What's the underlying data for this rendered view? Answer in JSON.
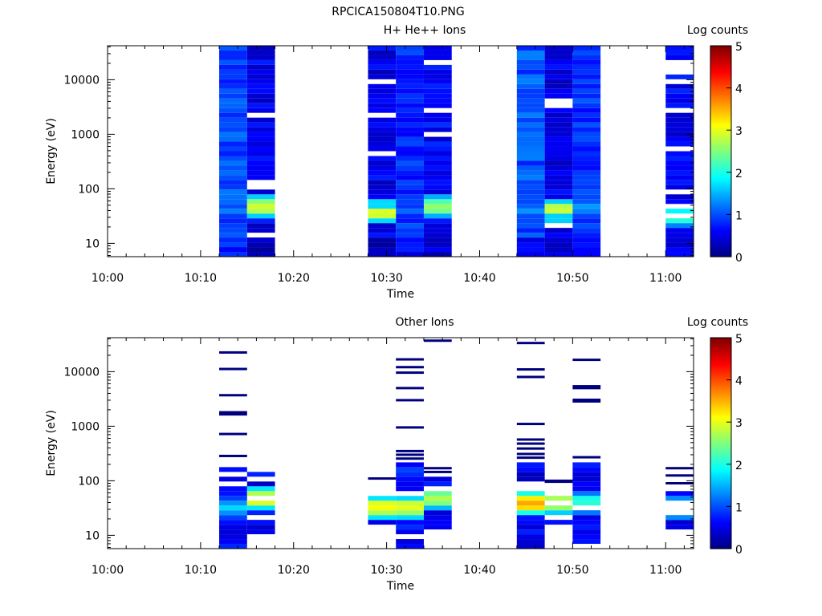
{
  "figure_title": "RPCICA150804T10.PNG",
  "colormap": [
    "#00007f",
    "#0000ff",
    "#007fff",
    "#00ffff",
    "#7fff7f",
    "#ffff00",
    "#ff7f00",
    "#ff0000",
    "#7f0000"
  ],
  "chart_data": [
    {
      "type": "heatmap",
      "title": "H+ He++ Ions",
      "xlabel": "Time",
      "ylabel": "Energy (eV)",
      "colorbar_label": "Log counts",
      "colorbar_range": [
        0,
        5
      ],
      "colorbar_ticks": [
        "0",
        "1",
        "2",
        "3",
        "4",
        "5"
      ],
      "x_range": [
        "10:00",
        "11:03"
      ],
      "x_ticks": [
        "10:00",
        "10:10",
        "10:20",
        "10:30",
        "10:40",
        "10:50",
        "11:00"
      ],
      "y_scale": "log",
      "y_range": [
        5.7,
        42000
      ],
      "y_ticks": [
        "10",
        "100",
        "1000",
        "10000"
      ],
      "columns": [
        {
          "start": "10:12",
          "end": "10:15",
          "seed": 11,
          "base": 0.9,
          "amp": 0.5,
          "gap": 0.0,
          "low": 0.6,
          "peak": {
            "e": 40,
            "v": 1.3
          }
        },
        {
          "start": "10:15",
          "end": "10:18",
          "seed": 23,
          "base": 0.45,
          "amp": 0.5,
          "gap": 0.14,
          "low": 0.1,
          "peak": {
            "e": 45,
            "v": 3.0
          }
        },
        {
          "start": "10:28",
          "end": "10:31",
          "seed": 37,
          "base": 0.45,
          "amp": 0.5,
          "gap": 0.12,
          "low": 0.1,
          "peak": {
            "e": 36,
            "v": 3.1
          }
        },
        {
          "start": "10:31",
          "end": "10:34",
          "seed": 41,
          "base": 0.75,
          "amp": 0.5,
          "gap": 0.0,
          "low": 0.4,
          "peak": {
            "e": 40,
            "v": 1.2
          }
        },
        {
          "start": "10:34",
          "end": "10:37",
          "seed": 53,
          "base": 0.55,
          "amp": 0.5,
          "gap": 0.1,
          "low": 0.2,
          "peak": {
            "e": 45,
            "v": 2.7
          }
        },
        {
          "start": "10:44",
          "end": "10:47",
          "seed": 67,
          "base": 0.95,
          "amp": 0.5,
          "gap": 0.0,
          "low": 0.4,
          "peak": {
            "e": 40,
            "v": 1.4
          }
        },
        {
          "start": "10:47",
          "end": "10:50",
          "seed": 71,
          "base": 0.45,
          "amp": 0.5,
          "gap": 0.12,
          "low": 0.3,
          "peak": {
            "e": 42,
            "v": 3.0
          }
        },
        {
          "start": "10:50",
          "end": "10:53",
          "seed": 83,
          "base": 0.8,
          "amp": 0.5,
          "gap": 0.0,
          "low": 0.4,
          "peak": {
            "e": 45,
            "v": 1.5
          }
        },
        {
          "start": "11:00",
          "end": "11:03",
          "seed": 97,
          "base": 0.5,
          "amp": 0.5,
          "gap": 0.14,
          "low": 0.3,
          "peak": {
            "e": 30,
            "v": 2.3
          }
        }
      ]
    },
    {
      "type": "heatmap",
      "title": "Other Ions",
      "xlabel": "Time",
      "ylabel": "Energy (eV)",
      "colorbar_label": "Log counts",
      "colorbar_range": [
        0,
        5
      ],
      "colorbar_ticks": [
        "0",
        "1",
        "2",
        "3",
        "4",
        "5"
      ],
      "x_range": [
        "10:00",
        "11:03"
      ],
      "x_ticks": [
        "10:00",
        "10:10",
        "10:20",
        "10:30",
        "10:40",
        "10:50",
        "11:00"
      ],
      "y_scale": "log",
      "y_range": [
        5.7,
        42000
      ],
      "y_ticks": [
        "10",
        "100",
        "1000",
        "10000"
      ],
      "columns": [
        {
          "start": "10:12",
          "end": "10:15",
          "seed": 13,
          "dense_top": 190,
          "base": 0.5,
          "amp": 0.5,
          "gap": 0.15,
          "peak": {
            "e": 32,
            "v": 1.7
          },
          "sparse": [
            22500,
            11200,
            3700,
            1800,
            1650,
            720,
            285
          ]
        },
        {
          "start": "10:15",
          "end": "10:18",
          "seed": 29,
          "dense_top": 135,
          "dense_bottom": 10,
          "base": 0.5,
          "amp": 0.5,
          "gap": 0.15,
          "peak": {
            "e": 45,
            "v": 3.2
          },
          "sparse": []
        },
        {
          "start": "10:28",
          "end": "10:31",
          "seed": 31,
          "dense_top": 58,
          "dense_bottom": 15,
          "base": 0.4,
          "amp": 0.4,
          "gap": 0.05,
          "peak": {
            "e": 34,
            "v": 3.2
          },
          "sparse": [
            110
          ]
        },
        {
          "start": "10:31",
          "end": "10:34",
          "seed": 43,
          "dense_top": 200,
          "base": 0.6,
          "amp": 0.5,
          "gap": 0.1,
          "peak": {
            "e": 34,
            "v": 3.1
          },
          "sparse": [
            16800,
            12100,
            9600,
            5000,
            3000,
            950,
            350,
            300,
            255
          ]
        },
        {
          "start": "10:34",
          "end": "10:37",
          "seed": 59,
          "dense_top": 110,
          "dense_bottom": 13,
          "base": 0.5,
          "amp": 0.5,
          "gap": 0.2,
          "peak": {
            "e": 46,
            "v": 2.8
          },
          "sparse": [
            37000,
            170,
            145
          ]
        },
        {
          "start": "10:44",
          "end": "10:47",
          "seed": 61,
          "dense_top": 215,
          "base": 0.45,
          "amp": 0.5,
          "gap": 0.1,
          "peak": {
            "e": 38,
            "v": 3.6
          },
          "sparse": [
            33500,
            11000,
            8000,
            1100,
            570,
            480,
            390,
            310,
            265
          ]
        },
        {
          "start": "10:47",
          "end": "10:50",
          "seed": 73,
          "dense_top": 58,
          "dense_bottom": 15,
          "base": 0.5,
          "amp": 0.5,
          "gap": 0.1,
          "peak": {
            "e": 40,
            "v": 3.0
          },
          "sparse": [
            100,
            96
          ]
        },
        {
          "start": "10:50",
          "end": "10:53",
          "seed": 89,
          "dense_top": 200,
          "base": 0.5,
          "amp": 0.5,
          "gap": 0.1,
          "peak": {
            "e": 42,
            "v": 2.2
          },
          "sparse": [
            16500,
            5400,
            5000,
            3050,
            2850,
            270
          ]
        },
        {
          "start": "11:00",
          "end": "11:03",
          "seed": 101,
          "dense_top": 65,
          "dense_bottom": 12,
          "base": 0.5,
          "amp": 0.5,
          "gap": 0.2,
          "peak": {
            "e": 30,
            "v": 2.4
          },
          "sparse": [
            170,
            125,
            90
          ]
        }
      ]
    }
  ]
}
